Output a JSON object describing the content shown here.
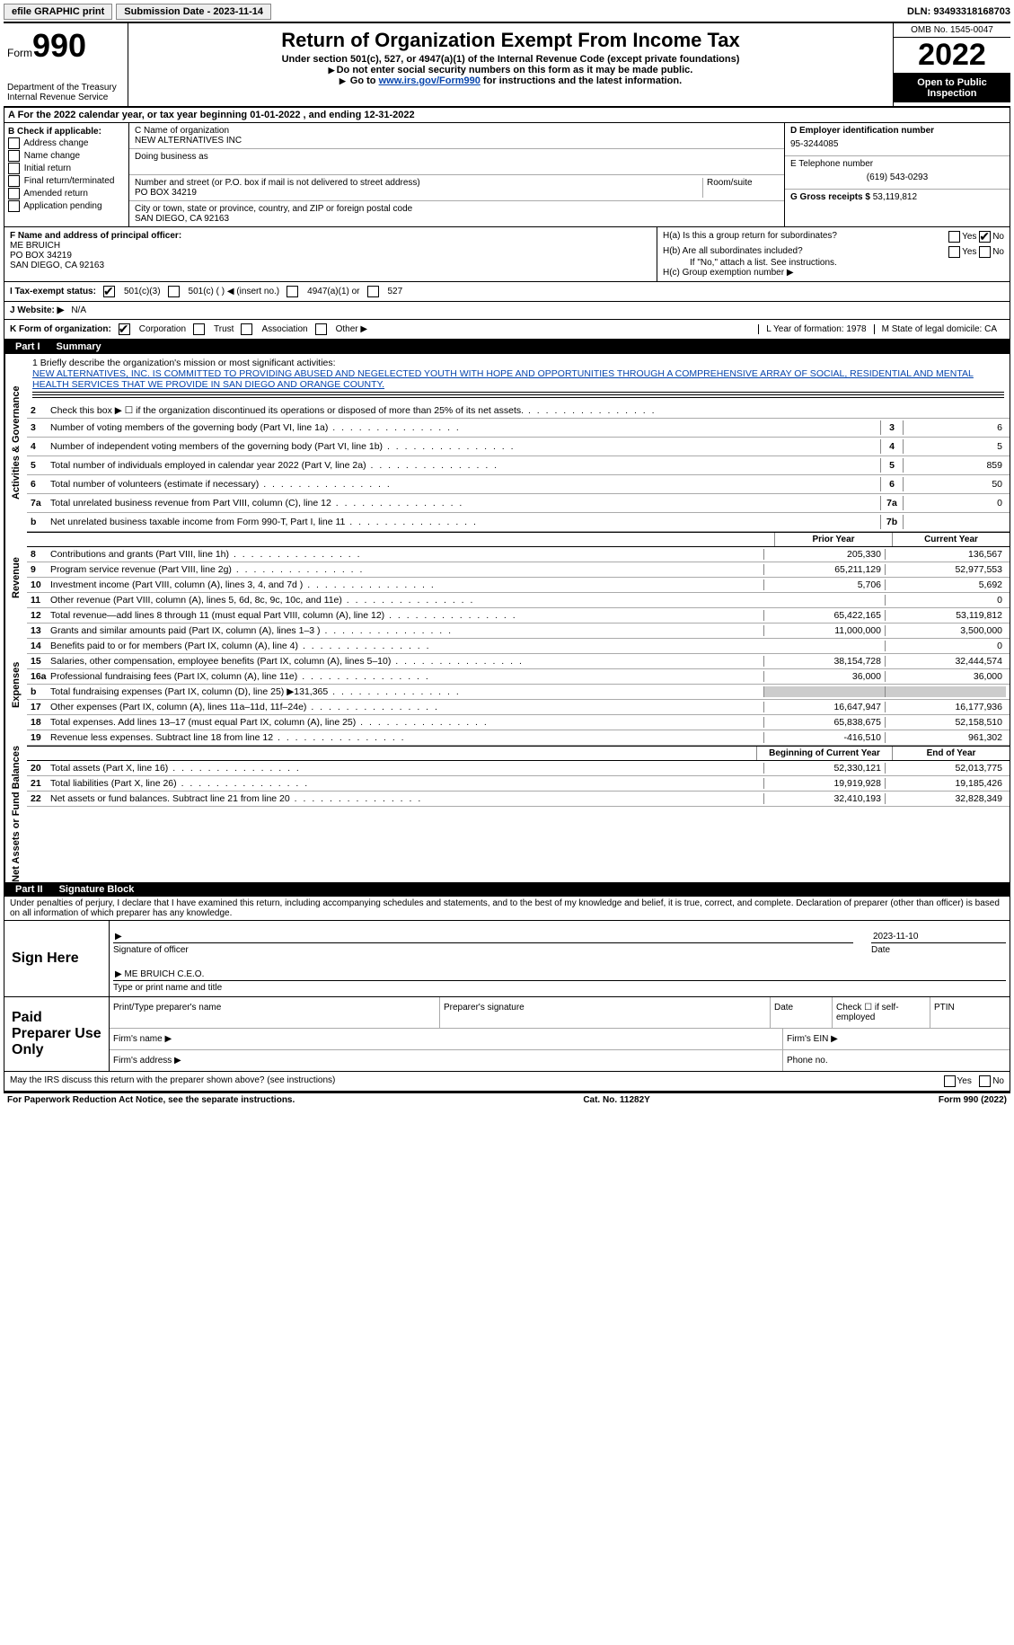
{
  "topbar": {
    "efile": "efile GRAPHIC print",
    "submission": "Submission Date - 2023-11-14",
    "dln": "DLN: 93493318168703"
  },
  "header": {
    "form_label": "Form",
    "form_num": "990",
    "dept": "Department of the Treasury Internal Revenue Service",
    "title": "Return of Organization Exempt From Income Tax",
    "sub1": "Under section 501(c), 527, or 4947(a)(1) of the Internal Revenue Code (except private foundations)",
    "sub2": "Do not enter social security numbers on this form as it may be made public.",
    "sub3_pre": "Go to ",
    "sub3_link": "www.irs.gov/Form990",
    "sub3_post": " for instructions and the latest information.",
    "omb": "OMB No. 1545-0047",
    "year": "2022",
    "open": "Open to Public Inspection"
  },
  "row_a": "A For the 2022 calendar year, or tax year beginning 01-01-2022    , and ending 12-31-2022",
  "block_b": {
    "title": "B Check if applicable:",
    "opts": [
      "Address change",
      "Name change",
      "Initial return",
      "Final return/terminated",
      "Amended return",
      "Application pending"
    ]
  },
  "block_c": {
    "name_label": "C Name of organization",
    "name": "NEW ALTERNATIVES INC",
    "dba_label": "Doing business as",
    "addr_label": "Number and street (or P.O. box if mail is not delivered to street address)",
    "room_label": "Room/suite",
    "addr": "PO BOX 34219",
    "city_label": "City or town, state or province, country, and ZIP or foreign postal code",
    "city": "SAN DIEGO, CA  92163"
  },
  "block_d": {
    "ein_label": "D Employer identification number",
    "ein": "95-3244085",
    "phone_label": "E Telephone number",
    "phone": "(619) 543-0293",
    "gross_label": "G Gross receipts $",
    "gross": "53,119,812"
  },
  "block_f": {
    "label": "F Name and address of principal officer:",
    "name": "ME BRUICH",
    "addr1": "PO BOX 34219",
    "addr2": "SAN DIEGO, CA  92163"
  },
  "block_h": {
    "ha": "H(a)  Is this a group return for subordinates?",
    "hb": "H(b)  Are all subordinates included?",
    "hb_note": "If \"No,\" attach a list. See instructions.",
    "hc": "H(c)  Group exemption number ▶"
  },
  "row_i": {
    "label": "I  Tax-exempt status:",
    "o1": "501(c)(3)",
    "o2": "501(c) (  ) ◀ (insert no.)",
    "o3": "4947(a)(1) or",
    "o4": "527"
  },
  "row_j": {
    "label": "J  Website: ▶",
    "val": "N/A"
  },
  "row_k": {
    "label": "K Form of organization:",
    "o1": "Corporation",
    "o2": "Trust",
    "o3": "Association",
    "o4": "Other ▶",
    "l": "L Year of formation: 1978",
    "m": "M State of legal domicile: CA"
  },
  "part1": {
    "num": "Part I",
    "title": "Summary"
  },
  "mission": {
    "q": "1   Briefly describe the organization's mission or most significant activities:",
    "text": "NEW ALTERNATIVES, INC. IS COMMITTED TO PROVIDING ABUSED AND NEGELECTED YOUTH WITH HOPE AND OPPORTUNITIES THROUGH A COMPREHENSIVE ARRAY OF SOCIAL, RESIDENTIAL AND MENTAL HEALTH SERVICES THAT WE PROVIDE IN SAN DIEGO AND ORANGE COUNTY."
  },
  "gov_lines": [
    {
      "n": "2",
      "label": "Check this box ▶ ☐ if the organization discontinued its operations or disposed of more than 25% of its net assets.",
      "box": "",
      "val": ""
    },
    {
      "n": "3",
      "label": "Number of voting members of the governing body (Part VI, line 1a)",
      "box": "3",
      "val": "6"
    },
    {
      "n": "4",
      "label": "Number of independent voting members of the governing body (Part VI, line 1b)",
      "box": "4",
      "val": "5"
    },
    {
      "n": "5",
      "label": "Total number of individuals employed in calendar year 2022 (Part V, line 2a)",
      "box": "5",
      "val": "859"
    },
    {
      "n": "6",
      "label": "Total number of volunteers (estimate if necessary)",
      "box": "6",
      "val": "50"
    },
    {
      "n": "7a",
      "label": "Total unrelated business revenue from Part VIII, column (C), line 12",
      "box": "7a",
      "val": "0"
    },
    {
      "n": "b",
      "label": "Net unrelated business taxable income from Form 990-T, Part I, line 11",
      "box": "7b",
      "val": ""
    }
  ],
  "year_cols": {
    "prior": "Prior Year",
    "current": "Current Year"
  },
  "rev_lines": [
    {
      "n": "8",
      "label": "Contributions and grants (Part VIII, line 1h)",
      "py": "205,330",
      "cy": "136,567"
    },
    {
      "n": "9",
      "label": "Program service revenue (Part VIII, line 2g)",
      "py": "65,211,129",
      "cy": "52,977,553"
    },
    {
      "n": "10",
      "label": "Investment income (Part VIII, column (A), lines 3, 4, and 7d )",
      "py": "5,706",
      "cy": "5,692"
    },
    {
      "n": "11",
      "label": "Other revenue (Part VIII, column (A), lines 5, 6d, 8c, 9c, 10c, and 11e)",
      "py": "",
      "cy": "0"
    },
    {
      "n": "12",
      "label": "Total revenue—add lines 8 through 11 (must equal Part VIII, column (A), line 12)",
      "py": "65,422,165",
      "cy": "53,119,812"
    }
  ],
  "exp_lines": [
    {
      "n": "13",
      "label": "Grants and similar amounts paid (Part IX, column (A), lines 1–3 )",
      "py": "11,000,000",
      "cy": "3,500,000"
    },
    {
      "n": "14",
      "label": "Benefits paid to or for members (Part IX, column (A), line 4)",
      "py": "",
      "cy": "0"
    },
    {
      "n": "15",
      "label": "Salaries, other compensation, employee benefits (Part IX, column (A), lines 5–10)",
      "py": "38,154,728",
      "cy": "32,444,574"
    },
    {
      "n": "16a",
      "label": "Professional fundraising fees (Part IX, column (A), line 11e)",
      "py": "36,000",
      "cy": "36,000"
    },
    {
      "n": "b",
      "label": "Total fundraising expenses (Part IX, column (D), line 25) ▶131,365",
      "py": "GREY",
      "cy": "GREY"
    },
    {
      "n": "17",
      "label": "Other expenses (Part IX, column (A), lines 11a–11d, 11f–24e)",
      "py": "16,647,947",
      "cy": "16,177,936"
    },
    {
      "n": "18",
      "label": "Total expenses. Add lines 13–17 (must equal Part IX, column (A), line 25)",
      "py": "65,838,675",
      "cy": "52,158,510"
    },
    {
      "n": "19",
      "label": "Revenue less expenses. Subtract line 18 from line 12",
      "py": "-416,510",
      "cy": "961,302"
    }
  ],
  "net_cols": {
    "begin": "Beginning of Current Year",
    "end": "End of Year"
  },
  "net_lines": [
    {
      "n": "20",
      "label": "Total assets (Part X, line 16)",
      "py": "52,330,121",
      "cy": "52,013,775"
    },
    {
      "n": "21",
      "label": "Total liabilities (Part X, line 26)",
      "py": "19,919,928",
      "cy": "19,185,426"
    },
    {
      "n": "22",
      "label": "Net assets or fund balances. Subtract line 21 from line 20",
      "py": "32,410,193",
      "cy": "32,828,349"
    }
  ],
  "part2": {
    "num": "Part II",
    "title": "Signature Block"
  },
  "penalties": "Under penalties of perjury, I declare that I have examined this return, including accompanying schedules and statements, and to the best of my knowledge and belief, it is true, correct, and complete. Declaration of preparer (other than officer) is based on all information of which preparer has any knowledge.",
  "sign": {
    "label": "Sign Here",
    "sig_label": "Signature of officer",
    "date": "2023-11-10",
    "date_label": "Date",
    "name": "ME BRUICH  C.E.O.",
    "name_label": "Type or print name and title"
  },
  "preparer": {
    "label": "Paid Preparer Use Only",
    "h1": "Print/Type preparer's name",
    "h2": "Preparer's signature",
    "h3": "Date",
    "h4": "Check ☐ if self-employed",
    "h5": "PTIN",
    "firm_name": "Firm's name  ▶",
    "firm_ein": "Firm's EIN ▶",
    "firm_addr": "Firm's address ▶",
    "phone": "Phone no."
  },
  "irs_discuss": "May the IRS discuss this return with the preparer shown above? (see instructions)",
  "footer": {
    "left": "For Paperwork Reduction Act Notice, see the separate instructions.",
    "mid": "Cat. No. 11282Y",
    "right": "Form 990 (2022)"
  },
  "vtabs": {
    "gov": "Activities & Governance",
    "rev": "Revenue",
    "exp": "Expenses",
    "net": "Net Assets or Fund Balances"
  }
}
